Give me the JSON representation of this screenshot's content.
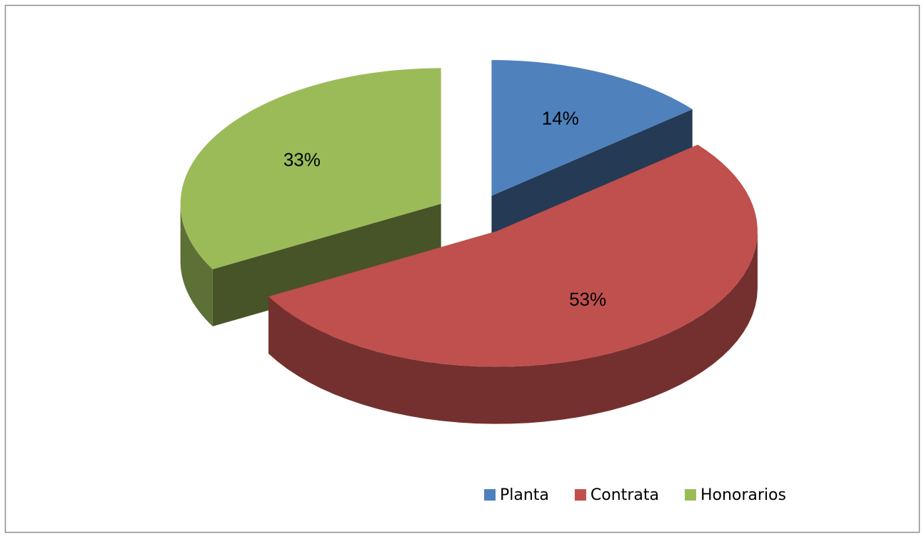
{
  "chart_data": {
    "type": "pie3d",
    "categories": [
      "Planta",
      "Contrata",
      "Honorarios"
    ],
    "values": [
      14,
      53,
      33
    ],
    "value_labels": [
      "14%",
      "53%",
      "33%"
    ],
    "colors": [
      "#4f81bd",
      "#c0504d",
      "#9bbb59"
    ],
    "legend": "bottom"
  }
}
